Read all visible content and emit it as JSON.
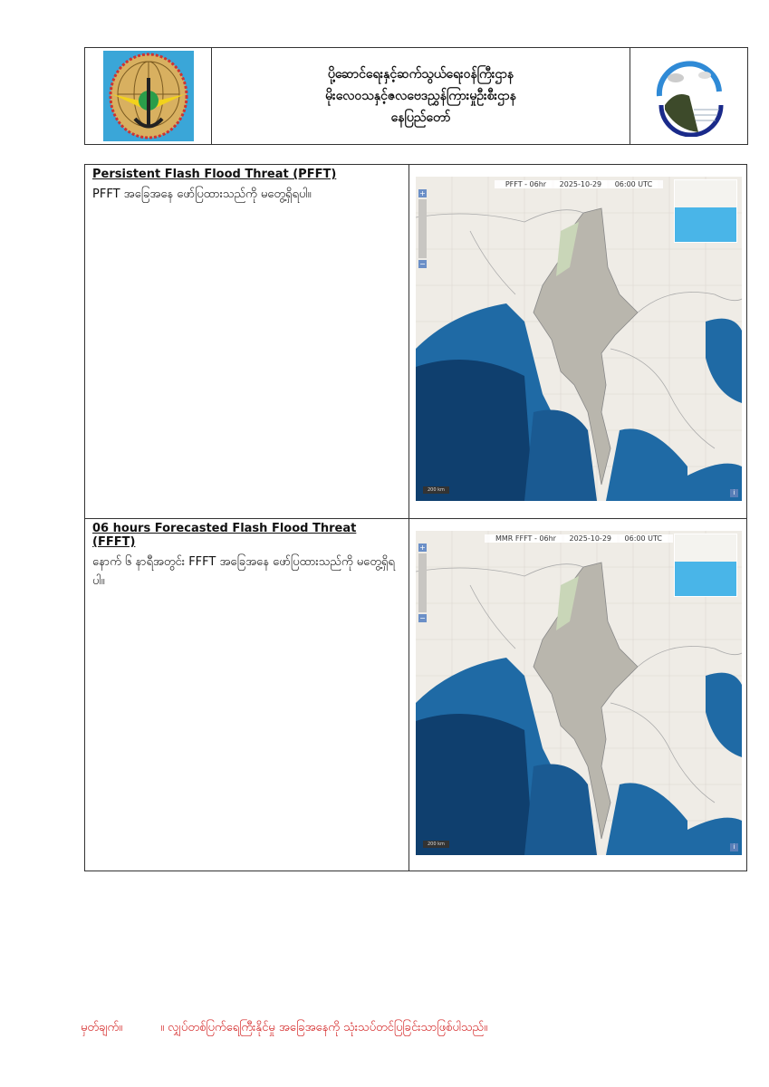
{
  "header": {
    "left_logo": "ministry-of-transport-communications-emblem",
    "title_lines": [
      "ပို့ဆောင်ရေးနှင့်ဆက်သွယ်ရေးဝန်ကြီးဌာန",
      "မိုးလေဝသနှင့်ဇလဗေဒညွှန်ကြားမှုဦးစီးဌာန",
      "နေပြည်တော်"
    ],
    "right_logo": "hydrological-cycle-logo"
  },
  "sections": [
    {
      "heading": "Persistent Flash Flood Threat (PFFT)",
      "body": "PFFT အခြေအနေ ဖော်ပြထားသည်ကို မတွေ့ရှိရပါ။",
      "map": {
        "title": "PFFT - 06hr",
        "date": "2025-10-29",
        "time": "06:00 UTC",
        "scale": "200 km"
      }
    },
    {
      "heading": "06 hours Forecasted Flash Flood Threat (FFFT)",
      "body": "နောက် ၆ နာရီအတွင်း FFFT အခြေအနေ ဖော်ပြထားသည်ကို မတွေ့ရှိရပါ။",
      "map": {
        "title": "MMR FFFT - 06hr",
        "date": "2025-10-29",
        "time": "06:00 UTC",
        "scale": "200 km"
      }
    }
  ],
  "footer": {
    "label": "မှတ်ချက်။",
    "text": "။ လျှပ်တစ်ပြက်ရေကြီးနိုင်မှု အခြေအနေကို သုံးသပ်တင်ပြခြင်းသာဖြစ်ပါသည်။"
  },
  "colors": {
    "note": "#d21c1c",
    "sea": "#1f6aa5",
    "land": "#efece6"
  }
}
